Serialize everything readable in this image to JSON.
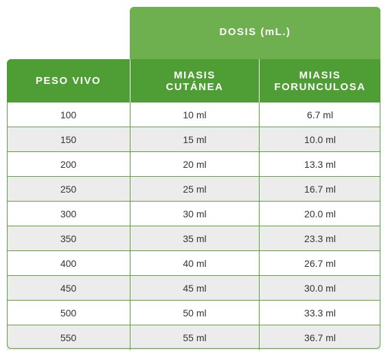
{
  "dosis_header": "DOSIS (mL.)",
  "columns": {
    "peso": "PESO VIVO",
    "cutanea_line1": "MIASIS",
    "cutanea_line2": "CUTÁNEA",
    "forunculosa_line1": "MIASIS",
    "forunculosa_line2": "FORUNCULOSA"
  },
  "rows": [
    {
      "peso": "100",
      "cutanea": "10 ml",
      "forunculosa": "6.7 ml"
    },
    {
      "peso": "150",
      "cutanea": "15 ml",
      "forunculosa": "10.0 ml"
    },
    {
      "peso": "200",
      "cutanea": "20 ml",
      "forunculosa": "13.3 ml"
    },
    {
      "peso": "250",
      "cutanea": "25 ml",
      "forunculosa": "16.7 ml"
    },
    {
      "peso": "300",
      "cutanea": "30 ml",
      "forunculosa": "20.0 ml"
    },
    {
      "peso": "350",
      "cutanea": "35 ml",
      "forunculosa": "23.3 ml"
    },
    {
      "peso": "400",
      "cutanea": "40 ml",
      "forunculosa": "26.7 ml"
    },
    {
      "peso": "450",
      "cutanea": "45 ml",
      "forunculosa": "30.0 ml"
    },
    {
      "peso": "500",
      "cutanea": "50 ml",
      "forunculosa": "33.3 ml"
    },
    {
      "peso": "550",
      "cutanea": "55 ml",
      "forunculosa": "36.7 ml"
    }
  ],
  "colors": {
    "header_light_green": "#6eb04f",
    "header_dark_green": "#4f9e35",
    "alt_row": "#ececec"
  }
}
